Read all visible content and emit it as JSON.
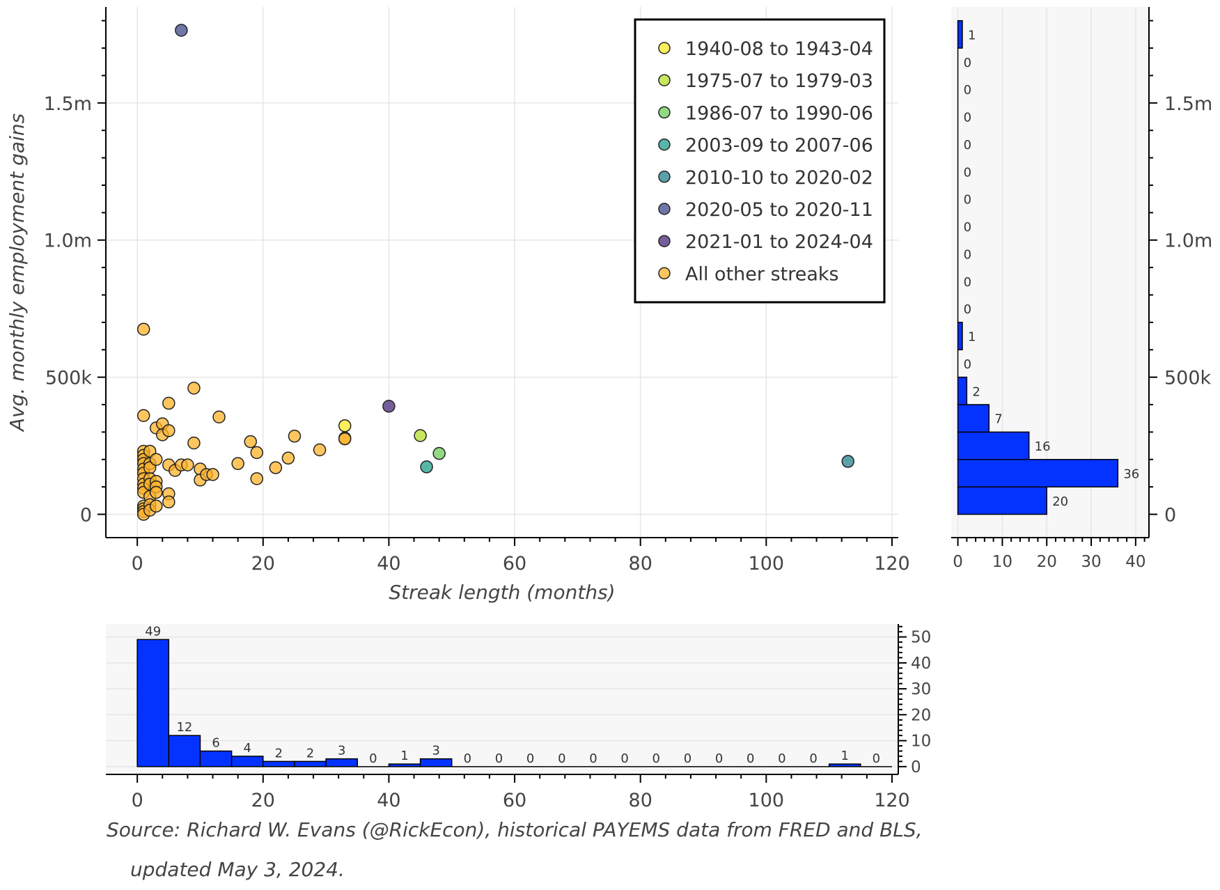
{
  "colors": {
    "hist_fill": "#0433ff",
    "hist_edge": "#000000",
    "others": "#ffb32a",
    "marker_edge": "#222222",
    "grid": "#e6e6e6",
    "axis": "#000000",
    "hist_bg": "#f7f7f7",
    "text": "#444444"
  },
  "chart_data": [
    {
      "type": "scatter",
      "xlabel": "Streak length (months)",
      "ylabel": "Avg. monthly employment gains",
      "xlim": [
        -5,
        121
      ],
      "ylim": [
        -85000,
        1850000
      ],
      "xticks": [
        0,
        20,
        40,
        60,
        80,
        100,
        120
      ],
      "xtick_labels": [
        "0",
        "20",
        "40",
        "60",
        "80",
        "100",
        "120"
      ],
      "yticks": [
        0,
        500000,
        1000000,
        1500000
      ],
      "ytick_labels": [
        "0",
        "500k",
        "1.0m",
        "1.5m"
      ],
      "grid": true,
      "legend_position": "top-right",
      "series": [
        {
          "name": "1940-08 to 1943-04",
          "color": "#fde725",
          "points": [
            [
              33,
              323000
            ]
          ]
        },
        {
          "name": "1975-07 to 1979-03",
          "color": "#b5de2b",
          "points": [
            [
              45,
              287000
            ]
          ]
        },
        {
          "name": "1986-07 to 1990-06",
          "color": "#6ece58",
          "points": [
            [
              48,
              222000
            ]
          ]
        },
        {
          "name": "2003-09 to 2007-06",
          "color": "#1f9e89",
          "points": [
            [
              46,
              173000
            ]
          ]
        },
        {
          "name": "2010-10 to 2020-02",
          "color": "#26828e",
          "points": [
            [
              113,
              193000
            ]
          ]
        },
        {
          "name": "2020-05 to 2020-11",
          "color": "#3e4a89",
          "points": [
            [
              7,
              1765000
            ]
          ]
        },
        {
          "name": "2021-01 to 2024-04",
          "color": "#482878",
          "points": [
            [
              40,
              394000
            ]
          ]
        },
        {
          "name": "All other streaks",
          "color": "#ffb32a",
          "points": [
            [
              1,
              675000
            ],
            [
              1,
              360000
            ],
            [
              1,
              230000
            ],
            [
              1,
              215000
            ],
            [
              1,
              200000
            ],
            [
              1,
              185000
            ],
            [
              1,
              165000
            ],
            [
              1,
              150000
            ],
            [
              1,
              130000
            ],
            [
              1,
              110000
            ],
            [
              1,
              95000
            ],
            [
              1,
              80000
            ],
            [
              1,
              30000
            ],
            [
              1,
              20000
            ],
            [
              1,
              10000
            ],
            [
              1,
              0
            ],
            [
              2,
              230000
            ],
            [
              2,
              185000
            ],
            [
              2,
              170000
            ],
            [
              2,
              130000
            ],
            [
              2,
              110000
            ],
            [
              2,
              65000
            ],
            [
              2,
              35000
            ],
            [
              2,
              15000
            ],
            [
              3,
              315000
            ],
            [
              3,
              200000
            ],
            [
              3,
              120000
            ],
            [
              3,
              100000
            ],
            [
              3,
              80000
            ],
            [
              3,
              30000
            ],
            [
              4,
              330000
            ],
            [
              4,
              290000
            ],
            [
              5,
              405000
            ],
            [
              5,
              305000
            ],
            [
              5,
              180000
            ],
            [
              5,
              75000
            ],
            [
              5,
              45000
            ],
            [
              6,
              160000
            ],
            [
              7,
              180000
            ],
            [
              8,
              180000
            ],
            [
              9,
              460000
            ],
            [
              9,
              260000
            ],
            [
              10,
              165000
            ],
            [
              10,
              125000
            ],
            [
              11,
              145000
            ],
            [
              12,
              145000
            ],
            [
              13,
              355000
            ],
            [
              16,
              185000
            ],
            [
              18,
              265000
            ],
            [
              19,
              225000
            ],
            [
              19,
              130000
            ],
            [
              22,
              170000
            ],
            [
              24,
              205000
            ],
            [
              25,
              285000
            ],
            [
              29,
              235000
            ],
            [
              33,
              278000
            ],
            [
              33,
              275000
            ]
          ]
        }
      ]
    },
    {
      "type": "bar",
      "orientation": "horizontal",
      "description_axis": "count of streaks by avg. monthly gain bin",
      "bin_edges": [
        0,
        100000,
        200000,
        300000,
        400000,
        500000,
        600000,
        700000,
        800000,
        900000,
        1000000,
        1100000,
        1200000,
        1300000,
        1400000,
        1500000,
        1600000,
        1700000,
        1800000
      ],
      "values": [
        20,
        36,
        16,
        7,
        2,
        0,
        1,
        0,
        0,
        0,
        0,
        0,
        0,
        0,
        0,
        0,
        0,
        1
      ],
      "xlim": [
        -1.5,
        43
      ],
      "xticks": [
        0,
        10,
        20,
        30,
        40
      ],
      "xtick_labels": [
        "0",
        "10",
        "20",
        "30",
        "40"
      ]
    },
    {
      "type": "bar",
      "description_axis": "count of streaks by streak length bin (months)",
      "bin_edges": [
        0,
        5,
        10,
        15,
        20,
        25,
        30,
        35,
        40,
        45,
        50,
        55,
        60,
        65,
        70,
        75,
        80,
        85,
        90,
        95,
        100,
        105,
        110,
        115,
        120
      ],
      "values": [
        49,
        12,
        6,
        4,
        2,
        2,
        3,
        0,
        1,
        3,
        0,
        0,
        0,
        0,
        0,
        0,
        0,
        0,
        0,
        0,
        0,
        0,
        1,
        0
      ],
      "ylim": [
        -3,
        55
      ],
      "yticks": [
        0,
        10,
        20,
        30,
        40,
        50
      ],
      "ytick_labels": [
        "0",
        "10",
        "20",
        "30",
        "40",
        "50"
      ]
    }
  ],
  "source_note": {
    "line1": "Source: Richard W. Evans (@RickEcon), historical PAYEMS data from FRED and BLS,",
    "line2": "updated May 3, 2024."
  }
}
